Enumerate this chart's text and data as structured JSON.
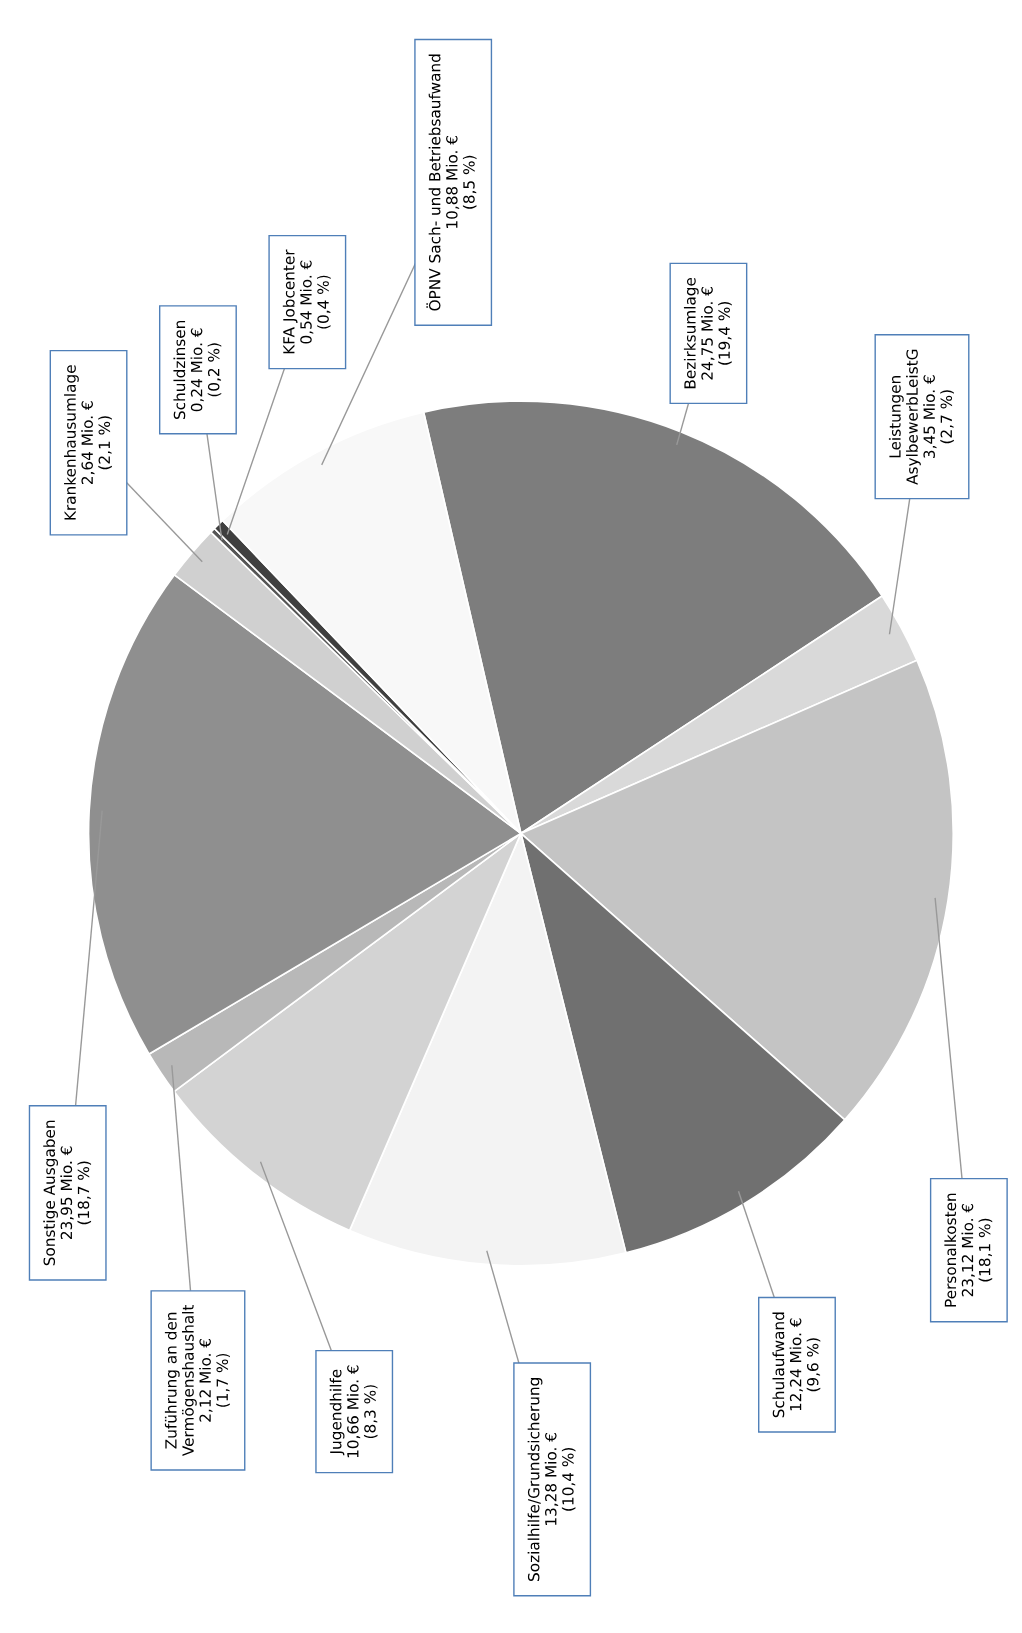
{
  "chart_data": {
    "type": "pie",
    "categories": [
      "Bezirksumlage",
      "Leistungen\nAsylbewerbLeistG",
      "Personalkosten",
      "Schulaufwand",
      "Sozialhilfe/Grundsicherung",
      "Jugendhilfe",
      "Zuführung an den\nVermögenshaushalt",
      "Sonstige Ausgaben",
      "Krankenhausumlage",
      "Schuldzinsen",
      "KFA Jobcenter",
      "ÖPNV Sach- und Betriebsaufwand"
    ],
    "values": [
      24.75,
      3.45,
      23.12,
      12.24,
      13.28,
      10.66,
      2.12,
      23.95,
      2.64,
      0.24,
      0.54,
      10.88
    ],
    "value_labels": [
      "24,75 Mio. €\n(19,4 %)",
      "3,45 Mio. €\n(2,7 %)",
      "23,12 Mio. €\n(18,1 %)",
      "12,24 Mio. €\n(9,6 %)",
      "13,28 Mio. €\n(10,4 %)",
      "10,66 Mio. €\n(8,3 %)",
      "2,12 Mio. €\n(1,7 %)",
      "23,95 Mio. €\n(18,7 %)",
      "2,64 Mio. €\n(2,1 %)",
      "0,24 Mio. €\n(0,2 %)",
      "0,54 Mio. €\n(0,4 %)",
      "10,88 Mio. €\n(8,5 %)"
    ],
    "colors": [
      "#7d7d7d",
      "#d9d9d9",
      "#c4c4c4",
      "#707070",
      "#f3f3f3",
      "#d3d3d3",
      "#b8b8b8",
      "#8f8f8f",
      "#d0d0d0",
      "#555555",
      "#3f3f3f",
      "#f8f8f8"
    ],
    "legend": false
  }
}
